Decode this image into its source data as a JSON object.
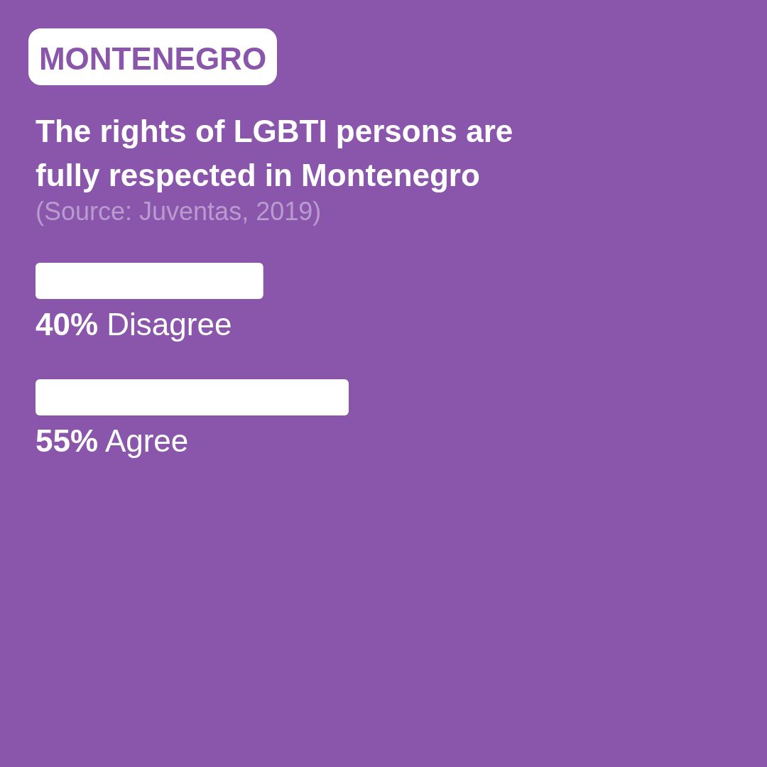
{
  "chart_data": {
    "type": "bar",
    "orientation": "horizontal",
    "title": "The rights of LGBTI persons are fully respected in Montenegro",
    "annotations": [
      "MONTENEGRO",
      "(Source: Juventas, 2019)"
    ],
    "categories": [
      "Disagree",
      "Agree"
    ],
    "values": [
      40,
      55
    ],
    "value_labels": [
      "40%",
      "55%"
    ],
    "color": "#ffffff"
  }
}
